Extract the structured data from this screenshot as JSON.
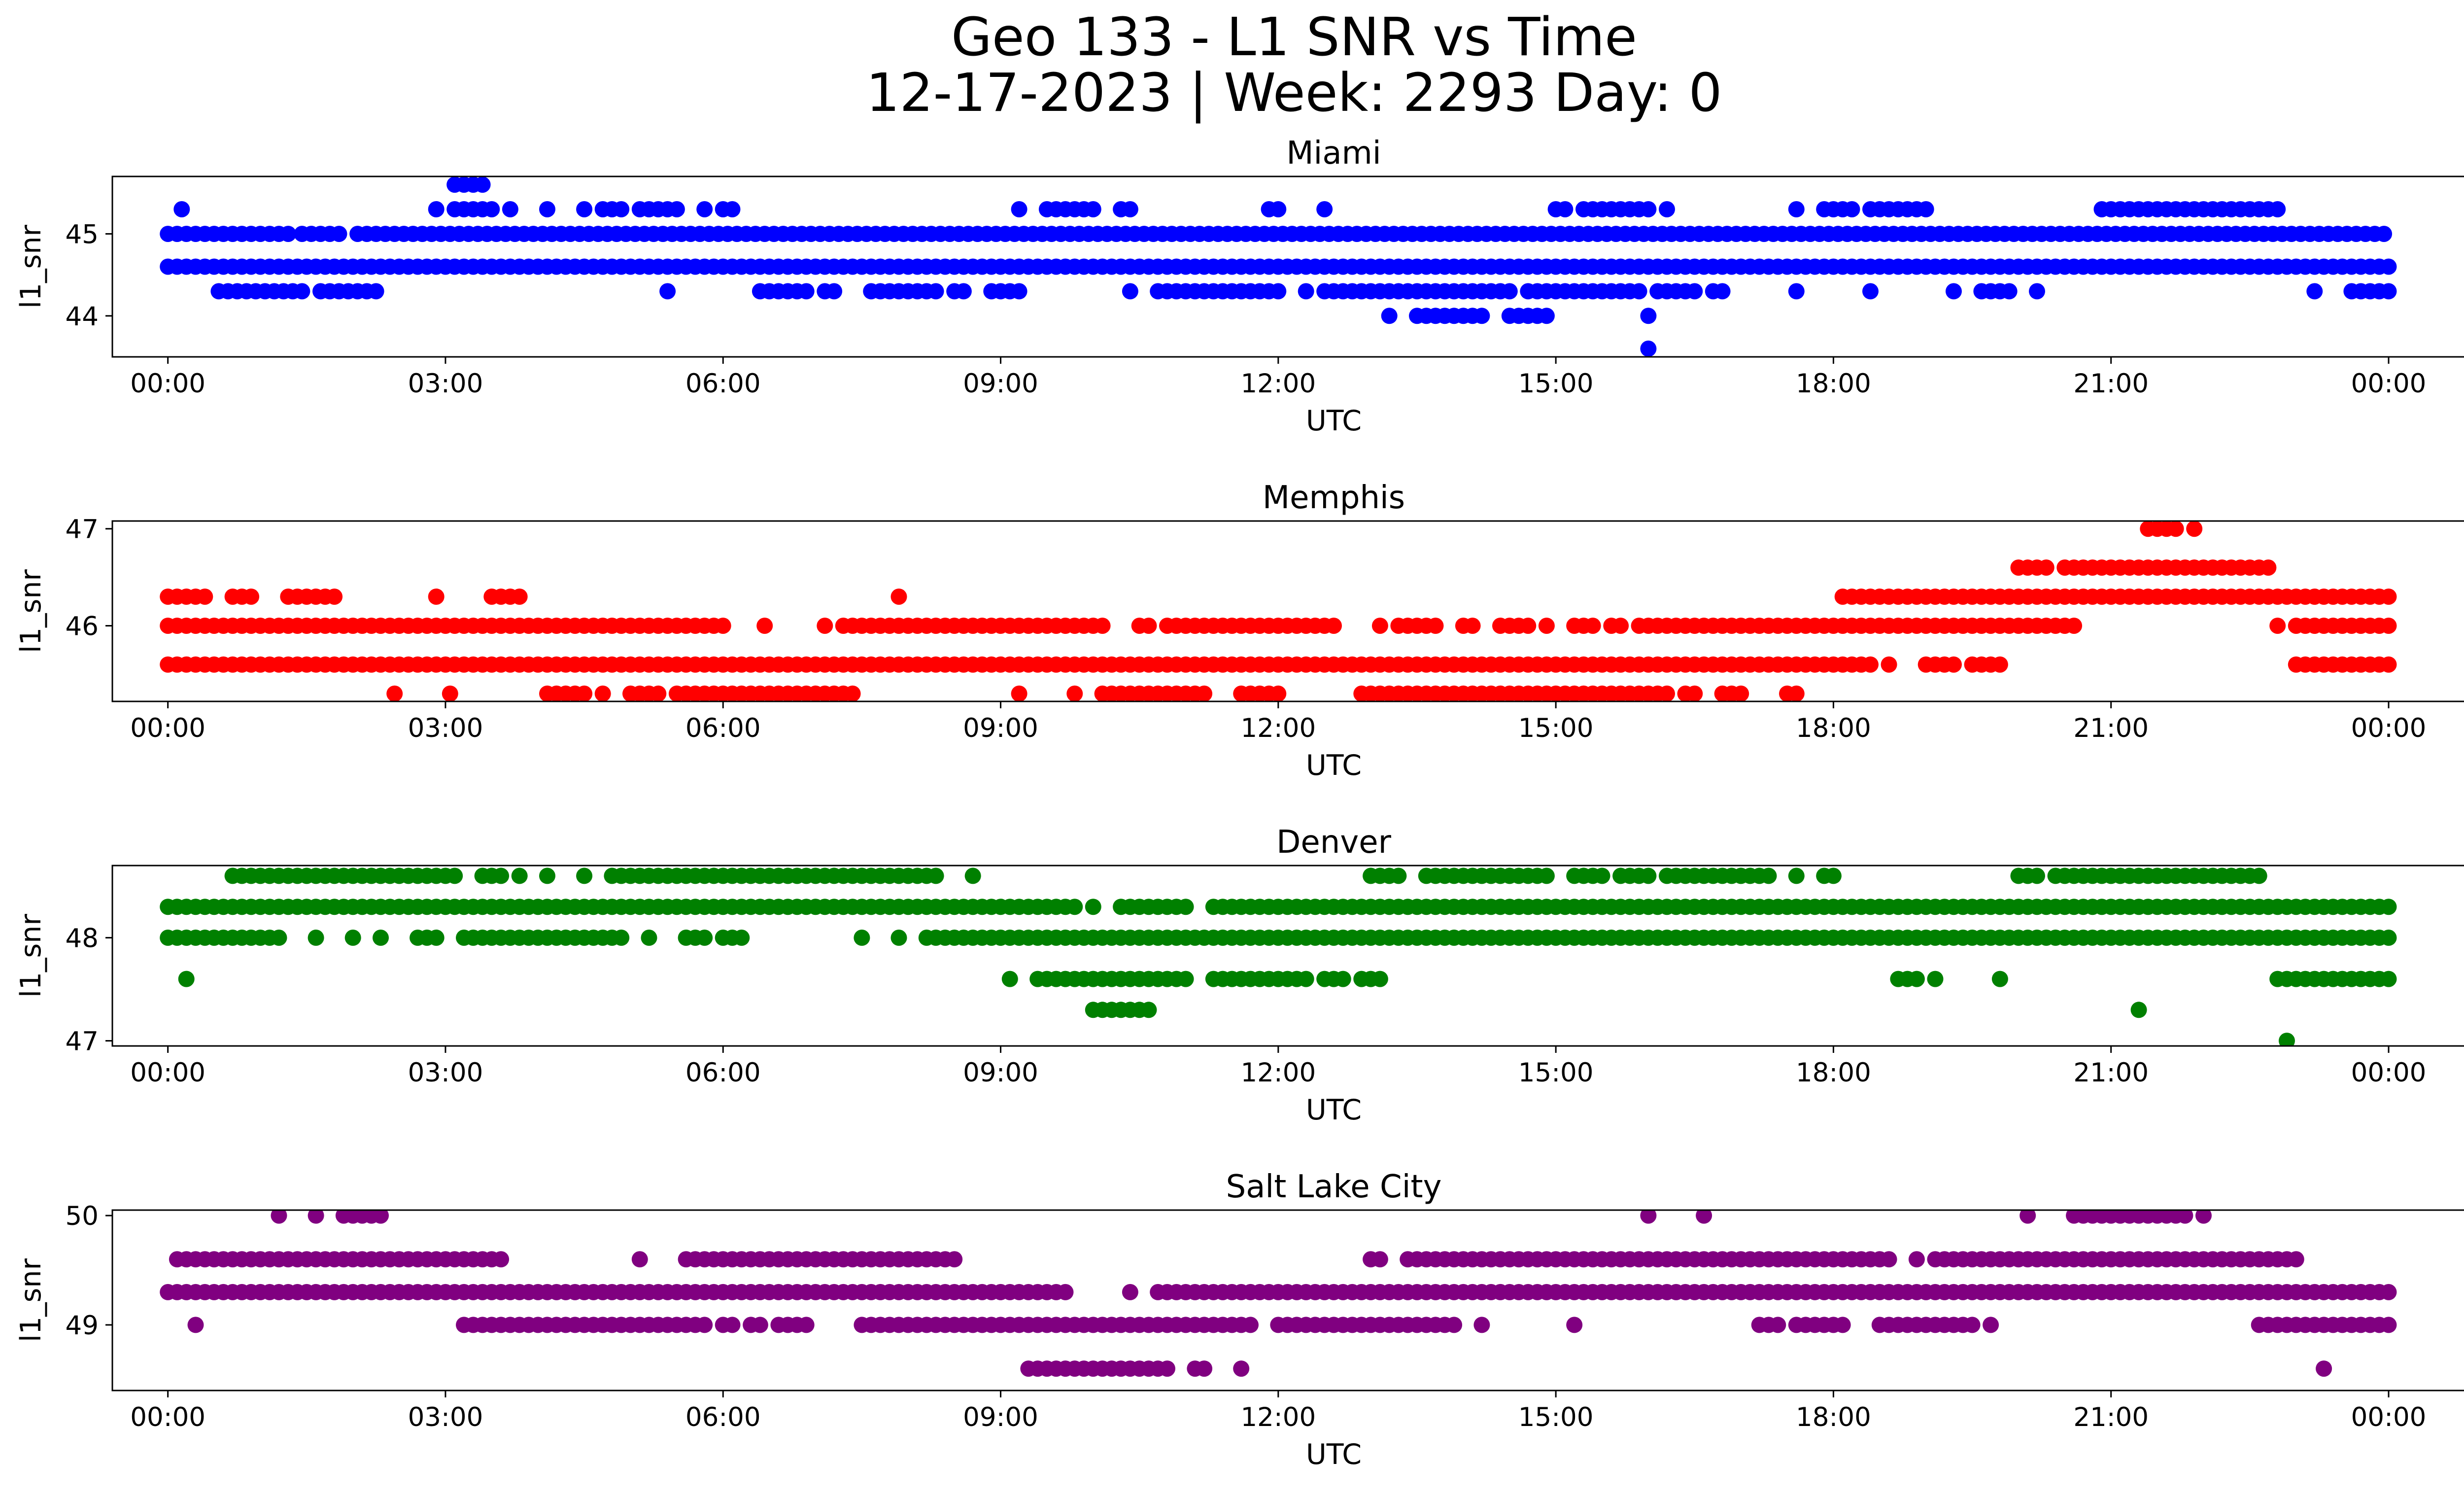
{
  "figure": {
    "title_line1": "Geo 133 - L1 SNR vs Time",
    "title_line2": "12-17-2023 | Week: 2293 Day: 0"
  },
  "chart_data": [
    {
      "type": "scatter",
      "title": "Miami",
      "xlabel": "UTC",
      "ylabel": "l1_snr",
      "color": "#0000ff",
      "xlim_hours": [
        -0.6,
        25.8
      ],
      "ylim": [
        43.5,
        45.7
      ],
      "yticks": [
        44,
        45
      ],
      "ytick_labels": [
        "44",
        "45"
      ],
      "xtick_hours": [
        0,
        3,
        6,
        9,
        12,
        15,
        18,
        21,
        24
      ],
      "xtick_labels": [
        "00:00",
        "03:00",
        "06:00",
        "09:00",
        "12:00",
        "15:00",
        "18:00",
        "21:00",
        "00:00"
      ],
      "series": [
        {
          "level": 45.0,
          "ranges": [
            [
              0.0,
              1.3
            ],
            [
              1.45,
              1.9
            ],
            [
              2.05,
              24.0
            ]
          ]
        },
        {
          "level": 44.6,
          "ranges": [
            [
              0.0,
              24.0
            ]
          ]
        },
        {
          "level": 44.3,
          "ranges": [
            [
              0.55,
              1.5
            ],
            [
              1.65,
              2.3
            ],
            [
              5.4,
              5.4
            ],
            [
              6.4,
              6.9
            ],
            [
              7.1,
              7.2
            ],
            [
              7.6,
              8.3
            ],
            [
              8.5,
              8.6
            ],
            [
              8.9,
              9.2
            ],
            [
              10.4,
              10.4
            ],
            [
              10.7,
              12.0
            ],
            [
              12.3,
              12.3
            ],
            [
              12.5,
              14.5
            ],
            [
              14.7,
              15.9
            ],
            [
              16.1,
              16.5
            ],
            [
              16.7,
              16.8
            ],
            [
              17.6,
              17.6
            ],
            [
              18.4,
              18.4
            ],
            [
              19.3,
              19.3
            ],
            [
              19.6,
              19.9
            ],
            [
              20.2,
              20.2
            ],
            [
              23.2,
              23.2
            ],
            [
              23.6,
              24.0
            ]
          ]
        },
        {
          "level": 45.3,
          "ranges": [
            [
              0.15,
              0.15
            ],
            [
              2.9,
              2.9
            ],
            [
              3.1,
              3.5
            ],
            [
              3.7,
              3.7
            ],
            [
              4.1,
              4.1
            ],
            [
              4.5,
              4.5
            ],
            [
              4.7,
              4.9
            ],
            [
              5.1,
              5.5
            ],
            [
              5.8,
              5.8
            ],
            [
              6.0,
              6.1
            ],
            [
              9.2,
              9.2
            ],
            [
              9.5,
              10.0
            ],
            [
              10.3,
              10.4
            ],
            [
              11.9,
              12.0
            ],
            [
              12.5,
              12.5
            ],
            [
              15.0,
              15.1
            ],
            [
              15.3,
              16.0
            ],
            [
              16.2,
              16.2
            ],
            [
              17.6,
              17.6
            ],
            [
              17.9,
              18.2
            ],
            [
              18.4,
              19.0
            ],
            [
              20.9,
              22.8
            ]
          ]
        },
        {
          "level": 45.6,
          "ranges": [
            [
              3.1,
              3.4
            ]
          ]
        },
        {
          "level": 44.0,
          "ranges": [
            [
              13.2,
              13.2
            ],
            [
              13.5,
              14.2
            ],
            [
              14.5,
              14.9
            ],
            [
              16.0,
              16.0
            ]
          ]
        },
        {
          "level": 43.6,
          "ranges": [
            [
              16.0,
              16.0
            ]
          ]
        }
      ]
    },
    {
      "type": "scatter",
      "title": "Memphis",
      "xlabel": "UTC",
      "ylabel": "l1_snr",
      "color": "#ff0000",
      "xlim_hours": [
        -0.6,
        25.8
      ],
      "ylim": [
        45.22,
        47.08
      ],
      "yticks": [
        46,
        47
      ],
      "ytick_labels": [
        "46",
        "47"
      ],
      "xtick_hours": [
        0,
        3,
        6,
        9,
        12,
        15,
        18,
        21,
        24
      ],
      "xtick_labels": [
        "00:00",
        "03:00",
        "06:00",
        "09:00",
        "12:00",
        "15:00",
        "18:00",
        "21:00",
        "00:00"
      ],
      "series": [
        {
          "level": 46.0,
          "ranges": [
            [
              0.0,
              6.0
            ],
            [
              6.45,
              6.45
            ],
            [
              7.1,
              7.1
            ],
            [
              7.3,
              10.1
            ],
            [
              10.5,
              10.6
            ],
            [
              10.8,
              12.6
            ],
            [
              13.1,
              13.1
            ],
            [
              13.3,
              13.7
            ],
            [
              14.0,
              14.1
            ],
            [
              14.4,
              14.7
            ],
            [
              14.9,
              14.9
            ],
            [
              15.2,
              15.4
            ],
            [
              15.6,
              15.7
            ],
            [
              15.9,
              20.6
            ],
            [
              22.8,
              22.8
            ],
            [
              23.0,
              24.0
            ]
          ]
        },
        {
          "level": 45.6,
          "ranges": [
            [
              0.0,
              18.4
            ],
            [
              18.6,
              18.6
            ],
            [
              19.0,
              19.3
            ],
            [
              19.5,
              19.8
            ],
            [
              23.0,
              24.0
            ]
          ]
        },
        {
          "level": 46.3,
          "ranges": [
            [
              0.0,
              0.4
            ],
            [
              0.7,
              0.9
            ],
            [
              1.3,
              1.8
            ],
            [
              2.9,
              2.9
            ],
            [
              3.5,
              3.8
            ],
            [
              7.9,
              7.9
            ],
            [
              18.1,
              24.0
            ]
          ]
        },
        {
          "level": 45.3,
          "ranges": [
            [
              2.45,
              2.45
            ],
            [
              3.05,
              3.05
            ],
            [
              4.1,
              4.5
            ],
            [
              4.7,
              4.7
            ],
            [
              5.0,
              5.3
            ],
            [
              5.5,
              7.4
            ],
            [
              9.2,
              9.2
            ],
            [
              9.8,
              9.8
            ],
            [
              10.1,
              11.2
            ],
            [
              11.6,
              12.0
            ],
            [
              12.9,
              16.2
            ],
            [
              16.4,
              16.5
            ],
            [
              16.8,
              17.0
            ],
            [
              17.5,
              17.6
            ]
          ]
        },
        {
          "level": 46.6,
          "ranges": [
            [
              20.0,
              20.3
            ],
            [
              20.5,
              22.7
            ]
          ]
        },
        {
          "level": 47.0,
          "ranges": [
            [
              21.4,
              21.7
            ],
            [
              21.9,
              21.9
            ]
          ]
        }
      ]
    },
    {
      "type": "scatter",
      "title": "Denver",
      "xlabel": "UTC",
      "ylabel": "l1_snr",
      "color": "#008000",
      "xlim_hours": [
        -0.6,
        25.8
      ],
      "ylim": [
        46.95,
        48.7
      ],
      "yticks": [
        47,
        48
      ],
      "ytick_labels": [
        "47",
        "48"
      ],
      "xtick_hours": [
        0,
        3,
        6,
        9,
        12,
        15,
        18,
        21,
        24
      ],
      "xtick_labels": [
        "00:00",
        "03:00",
        "06:00",
        "09:00",
        "12:00",
        "15:00",
        "18:00",
        "21:00",
        "00:00"
      ],
      "series": [
        {
          "level": 48.3,
          "ranges": [
            [
              0.0,
              9.8
            ],
            [
              10.0,
              10.0
            ],
            [
              10.3,
              11.0
            ],
            [
              11.3,
              24.0
            ]
          ]
        },
        {
          "level": 48.0,
          "ranges": [
            [
              0.0,
              1.2
            ],
            [
              1.6,
              1.6
            ],
            [
              2.0,
              2.0
            ],
            [
              2.3,
              2.3
            ],
            [
              2.7,
              2.9
            ],
            [
              3.2,
              4.9
            ],
            [
              5.2,
              5.2
            ],
            [
              5.6,
              5.8
            ],
            [
              6.0,
              6.2
            ],
            [
              7.5,
              7.5
            ],
            [
              7.9,
              7.9
            ],
            [
              8.2,
              21.4
            ],
            [
              21.5,
              21.7
            ],
            [
              21.8,
              24.0
            ]
          ]
        },
        {
          "level": 48.6,
          "ranges": [
            [
              0.7,
              0.8
            ],
            [
              0.9,
              3.1
            ],
            [
              3.4,
              3.6
            ],
            [
              3.8,
              3.8
            ],
            [
              4.1,
              4.1
            ],
            [
              4.5,
              4.5
            ],
            [
              4.8,
              8.3
            ],
            [
              8.7,
              8.7
            ],
            [
              13.0,
              13.3
            ],
            [
              13.6,
              14.9
            ],
            [
              15.2,
              15.5
            ],
            [
              15.7,
              16.0
            ],
            [
              16.2,
              17.3
            ],
            [
              17.6,
              17.6
            ],
            [
              17.9,
              18.0
            ],
            [
              20.0,
              20.2
            ],
            [
              20.4,
              22.6
            ]
          ]
        },
        {
          "level": 47.6,
          "ranges": [
            [
              0.2,
              0.2
            ],
            [
              9.1,
              9.1
            ],
            [
              9.4,
              11.0
            ],
            [
              11.3,
              11.9
            ],
            [
              12.0,
              12.3
            ],
            [
              12.5,
              12.7
            ],
            [
              12.9,
              13.1
            ],
            [
              18.7,
              18.9
            ],
            [
              19.1,
              19.1
            ],
            [
              19.8,
              19.8
            ],
            [
              22.8,
              24.0
            ]
          ]
        },
        {
          "level": 47.3,
          "ranges": [
            [
              10.0,
              10.6
            ],
            [
              21.3,
              21.3
            ]
          ]
        },
        {
          "level": 47.0,
          "ranges": [
            [
              22.9,
              22.9
            ]
          ]
        }
      ]
    },
    {
      "type": "scatter",
      "title": "Salt Lake City",
      "xlabel": "UTC",
      "ylabel": "l1_snr",
      "color": "#800080",
      "xlim_hours": [
        -0.6,
        25.8
      ],
      "ylim": [
        48.4,
        50.05
      ],
      "yticks": [
        49,
        50
      ],
      "ytick_labels": [
        "49",
        "50"
      ],
      "xtick_hours": [
        0,
        3,
        6,
        9,
        12,
        15,
        18,
        21,
        24
      ],
      "xtick_labels": [
        "00:00",
        "03:00",
        "06:00",
        "09:00",
        "12:00",
        "15:00",
        "18:00",
        "21:00",
        "00:00"
      ],
      "series": [
        {
          "level": 49.3,
          "ranges": [
            [
              0.0,
              9.7
            ],
            [
              10.4,
              10.4
            ],
            [
              10.7,
              24.0
            ]
          ]
        },
        {
          "level": 49.6,
          "ranges": [
            [
              0.1,
              3.5
            ],
            [
              3.6,
              3.6
            ],
            [
              5.1,
              5.1
            ],
            [
              5.6,
              8.5
            ],
            [
              13.0,
              13.1
            ],
            [
              13.4,
              18.6
            ],
            [
              18.9,
              18.9
            ],
            [
              19.1,
              22.6
            ],
            [
              22.7,
              23.0
            ]
          ]
        },
        {
          "level": 49.0,
          "ranges": [
            [
              0.3,
              0.3
            ],
            [
              3.2,
              5.8
            ],
            [
              6.0,
              6.1
            ],
            [
              6.3,
              6.4
            ],
            [
              6.6,
              6.9
            ],
            [
              7.5,
              11.7
            ],
            [
              12.0,
              13.9
            ],
            [
              14.2,
              14.2
            ],
            [
              15.2,
              15.2
            ],
            [
              17.2,
              17.4
            ],
            [
              17.6,
              18.1
            ],
            [
              18.5,
              19.5
            ],
            [
              19.7,
              19.7
            ],
            [
              22.6,
              24.0
            ]
          ]
        },
        {
          "level": 50.0,
          "ranges": [
            [
              1.2,
              1.2
            ],
            [
              1.6,
              1.6
            ],
            [
              1.9,
              2.3
            ],
            [
              16.0,
              16.0
            ],
            [
              16.6,
              16.6
            ],
            [
              20.1,
              20.1
            ],
            [
              20.6,
              21.8
            ],
            [
              22.0,
              22.0
            ]
          ]
        },
        {
          "level": 48.6,
          "ranges": [
            [
              9.3,
              10.8
            ],
            [
              11.1,
              11.2
            ],
            [
              11.6,
              11.6
            ],
            [
              23.3,
              23.3
            ]
          ]
        }
      ]
    }
  ]
}
